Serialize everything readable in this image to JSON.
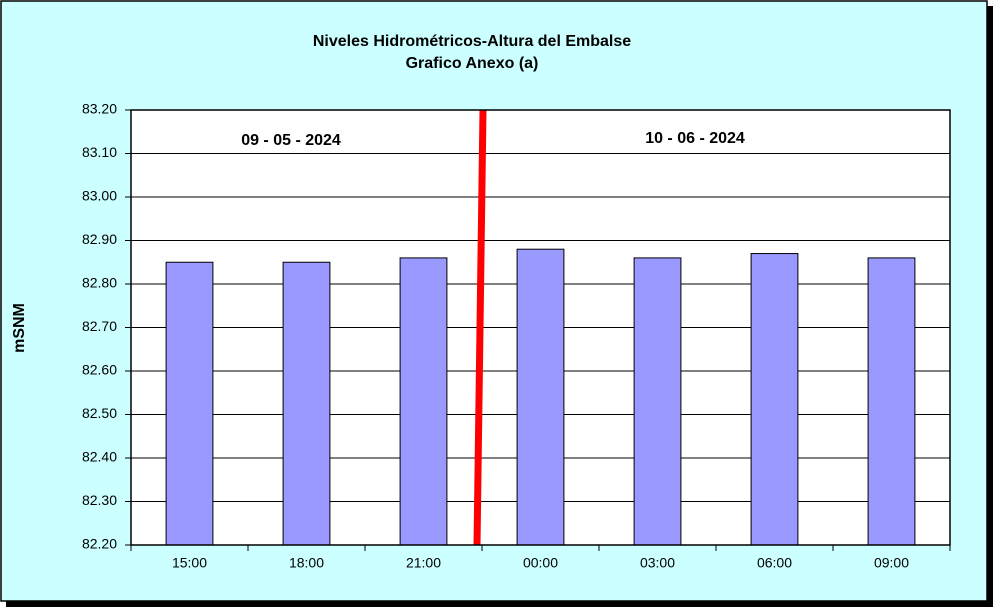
{
  "chart_data": {
    "type": "bar",
    "title": "Niveles Hidrométricos-Altura del Embalse",
    "subtitle": "Grafico Anexo (a)",
    "y_label": "mSNM",
    "annotations": [
      "09 - 05 - 2024",
      "10 - 06 - 2024"
    ],
    "categories": [
      "15:00",
      "18:00",
      "21:00",
      "00:00",
      "03:00",
      "06:00",
      "09:00"
    ],
    "values": [
      82.85,
      82.85,
      82.86,
      82.88,
      82.86,
      82.87,
      82.86
    ],
    "color": "#9999ff",
    "ylim": [
      82.2,
      83.2
    ],
    "yticks": [
      {
        "value": 82.2,
        "label": "82.20"
      },
      {
        "value": 82.3,
        "label": "82.30"
      },
      {
        "value": 82.4,
        "label": "82.40"
      },
      {
        "value": 82.5,
        "label": "82.50"
      },
      {
        "value": 82.6,
        "label": "82.60"
      },
      {
        "value": 82.7,
        "label": "82.70"
      },
      {
        "value": 82.8,
        "label": "82.80"
      },
      {
        "value": 82.9,
        "label": "82.90"
      },
      {
        "value": 83.0,
        "label": "83.00"
      },
      {
        "value": 83.1,
        "label": "83.10"
      },
      {
        "value": 83.2,
        "label": "83.20"
      }
    ],
    "grid": true
  }
}
